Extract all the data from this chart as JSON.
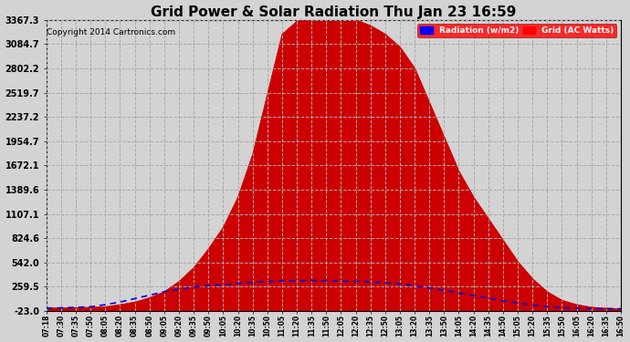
{
  "title": "Grid Power & Solar Radiation Thu Jan 23 16:59",
  "copyright": "Copyright 2014 Cartronics.com",
  "background_color": "#d3d3d3",
  "plot_bg_color": "#d3d3d3",
  "yticks": [
    -23.0,
    259.5,
    542.0,
    824.6,
    1107.1,
    1389.6,
    1672.1,
    1954.7,
    2237.2,
    2519.7,
    2802.2,
    3084.7,
    3367.3
  ],
  "ymin": -23.0,
  "ymax": 3367.3,
  "legend_radiation_label": "Radiation (w/m2)",
  "legend_grid_label": "Grid (AC Watts)",
  "radiation_color": "#cc0000",
  "radiation_fill_color": "#cc0000",
  "grid_line_color": "#0000dd",
  "time_labels": [
    "07:18",
    "07:30",
    "07:35",
    "07:50",
    "08:05",
    "08:20",
    "08:35",
    "08:50",
    "09:05",
    "09:20",
    "09:35",
    "09:50",
    "10:05",
    "10:20",
    "10:35",
    "10:50",
    "11:05",
    "11:20",
    "11:35",
    "11:50",
    "12:05",
    "12:20",
    "12:35",
    "12:50",
    "13:05",
    "13:20",
    "13:35",
    "13:50",
    "14:05",
    "14:20",
    "14:35",
    "14:50",
    "15:05",
    "15:20",
    "15:35",
    "15:50",
    "16:05",
    "16:20",
    "16:35",
    "16:50"
  ],
  "solar_data": [
    10,
    12,
    15,
    18,
    25,
    50,
    80,
    130,
    200,
    320,
    480,
    700,
    950,
    1300,
    1800,
    2500,
    3200,
    3350,
    3367,
    3367,
    3367,
    3367,
    3300,
    3200,
    3050,
    2800,
    2400,
    2000,
    1600,
    1300,
    1050,
    800,
    550,
    350,
    200,
    100,
    50,
    20,
    8,
    3
  ],
  "grid_data": [
    10,
    12,
    18,
    25,
    50,
    80,
    120,
    160,
    200,
    230,
    255,
    270,
    280,
    295,
    310,
    320,
    325,
    328,
    330,
    328,
    325,
    320,
    315,
    305,
    290,
    270,
    245,
    215,
    185,
    155,
    125,
    95,
    70,
    45,
    28,
    15,
    8,
    5,
    3,
    2
  ],
  "figwidth": 6.9,
  "figheight": 3.75,
  "dpi": 100
}
